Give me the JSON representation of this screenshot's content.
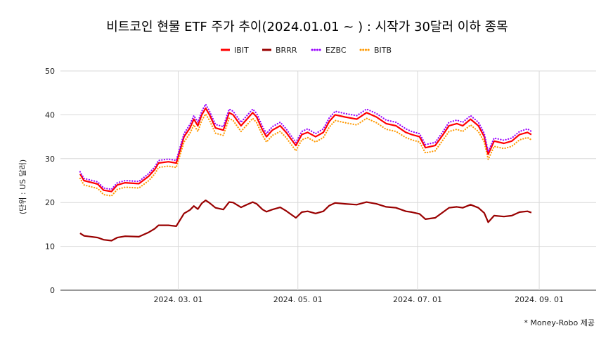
{
  "chart_data": {
    "type": "line",
    "title": "비트코인 현물 ETF 주가 추이(2024.01.01 ~ ) :  시작가 30달러 이하 종목",
    "ylabel": "(단위 : US 달러)",
    "xlabel": "",
    "ylim": [
      0,
      50
    ],
    "yticks": [
      0,
      10,
      20,
      30,
      40,
      50
    ],
    "x_range": [
      "2024-01-01",
      "2024-09-30"
    ],
    "xticks": [
      {
        "date": "2024-03-01",
        "label": "2024. 03. 01"
      },
      {
        "date": "2024-05-01",
        "label": "2024. 05. 01"
      },
      {
        "date": "2024-07-01",
        "label": "2024. 07. 01"
      },
      {
        "date": "2024-09-01",
        "label": "2024. 09. 01"
      }
    ],
    "grid": true,
    "legend_position": "top",
    "series": [
      {
        "name": "IBIT",
        "color": "#ff0000",
        "style": "solid",
        "points": [
          [
            "2024-01-11",
            26.5
          ],
          [
            "2024-01-13",
            25.0
          ],
          [
            "2024-01-20",
            24.2
          ],
          [
            "2024-01-23",
            22.8
          ],
          [
            "2024-01-27",
            22.5
          ],
          [
            "2024-01-30",
            24.0
          ],
          [
            "2024-02-03",
            24.5
          ],
          [
            "2024-02-10",
            24.3
          ],
          [
            "2024-02-15",
            26.0
          ],
          [
            "2024-02-18",
            27.5
          ],
          [
            "2024-02-20",
            29.0
          ],
          [
            "2024-02-25",
            29.3
          ],
          [
            "2024-02-29",
            29.0
          ],
          [
            "2024-03-04",
            35.0
          ],
          [
            "2024-03-07",
            37.0
          ],
          [
            "2024-03-09",
            39.0
          ],
          [
            "2024-03-11",
            37.5
          ],
          [
            "2024-03-13",
            40.0
          ],
          [
            "2024-03-15",
            41.5
          ],
          [
            "2024-03-17",
            40.0
          ],
          [
            "2024-03-20",
            37.0
          ],
          [
            "2024-03-24",
            36.5
          ],
          [
            "2024-03-27",
            40.5
          ],
          [
            "2024-03-29",
            40.0
          ],
          [
            "2024-04-02",
            37.5
          ],
          [
            "2024-04-05",
            39.0
          ],
          [
            "2024-04-08",
            40.5
          ],
          [
            "2024-04-10",
            39.5
          ],
          [
            "2024-04-13",
            36.5
          ],
          [
            "2024-04-15",
            35.0
          ],
          [
            "2024-04-18",
            36.5
          ],
          [
            "2024-04-22",
            37.5
          ],
          [
            "2024-04-25",
            36.0
          ],
          [
            "2024-04-30",
            33.0
          ],
          [
            "2024-05-03",
            35.5
          ],
          [
            "2024-05-06",
            36.0
          ],
          [
            "2024-05-10",
            35.0
          ],
          [
            "2024-05-14",
            36.0
          ],
          [
            "2024-05-17",
            38.5
          ],
          [
            "2024-05-20",
            40.0
          ],
          [
            "2024-05-25",
            39.5
          ],
          [
            "2024-05-31",
            39.0
          ],
          [
            "2024-06-05",
            40.5
          ],
          [
            "2024-06-10",
            39.5
          ],
          [
            "2024-06-15",
            38.0
          ],
          [
            "2024-06-20",
            37.5
          ],
          [
            "2024-06-25",
            36.0
          ],
          [
            "2024-06-28",
            35.5
          ],
          [
            "2024-07-02",
            35.0
          ],
          [
            "2024-07-05",
            32.5
          ],
          [
            "2024-07-10",
            33.0
          ],
          [
            "2024-07-14",
            35.5
          ],
          [
            "2024-07-17",
            37.5
          ],
          [
            "2024-07-21",
            38.0
          ],
          [
            "2024-07-24",
            37.5
          ],
          [
            "2024-07-28",
            39.0
          ],
          [
            "2024-08-01",
            37.5
          ],
          [
            "2024-08-04",
            35.0
          ],
          [
            "2024-08-06",
            31.0
          ],
          [
            "2024-08-09",
            34.0
          ],
          [
            "2024-08-14",
            33.5
          ],
          [
            "2024-08-18",
            34.0
          ],
          [
            "2024-08-22",
            35.5
          ],
          [
            "2024-08-26",
            36.0
          ],
          [
            "2024-08-28",
            35.5
          ]
        ]
      },
      {
        "name": "BRRR",
        "color": "#990000",
        "style": "solid",
        "points": [
          [
            "2024-01-11",
            13.0
          ],
          [
            "2024-01-13",
            12.4
          ],
          [
            "2024-01-20",
            12.0
          ],
          [
            "2024-01-23",
            11.5
          ],
          [
            "2024-01-27",
            11.3
          ],
          [
            "2024-01-30",
            12.0
          ],
          [
            "2024-02-03",
            12.3
          ],
          [
            "2024-02-10",
            12.2
          ],
          [
            "2024-02-15",
            13.2
          ],
          [
            "2024-02-18",
            14.0
          ],
          [
            "2024-02-20",
            14.8
          ],
          [
            "2024-02-25",
            14.8
          ],
          [
            "2024-02-29",
            14.6
          ],
          [
            "2024-03-04",
            17.5
          ],
          [
            "2024-03-07",
            18.3
          ],
          [
            "2024-03-09",
            19.2
          ],
          [
            "2024-03-11",
            18.5
          ],
          [
            "2024-03-13",
            19.8
          ],
          [
            "2024-03-15",
            20.5
          ],
          [
            "2024-03-17",
            19.9
          ],
          [
            "2024-03-20",
            18.8
          ],
          [
            "2024-03-24",
            18.4
          ],
          [
            "2024-03-27",
            20.1
          ],
          [
            "2024-03-29",
            20.0
          ],
          [
            "2024-04-02",
            18.9
          ],
          [
            "2024-04-05",
            19.5
          ],
          [
            "2024-04-08",
            20.1
          ],
          [
            "2024-04-10",
            19.7
          ],
          [
            "2024-04-13",
            18.4
          ],
          [
            "2024-04-15",
            17.9
          ],
          [
            "2024-04-18",
            18.4
          ],
          [
            "2024-04-22",
            18.9
          ],
          [
            "2024-04-25",
            18.1
          ],
          [
            "2024-04-30",
            16.5
          ],
          [
            "2024-05-03",
            17.8
          ],
          [
            "2024-05-06",
            18.0
          ],
          [
            "2024-05-10",
            17.5
          ],
          [
            "2024-05-14",
            18.0
          ],
          [
            "2024-05-17",
            19.3
          ],
          [
            "2024-05-20",
            19.9
          ],
          [
            "2024-05-25",
            19.7
          ],
          [
            "2024-05-31",
            19.5
          ],
          [
            "2024-06-05",
            20.1
          ],
          [
            "2024-06-10",
            19.7
          ],
          [
            "2024-06-15",
            19.0
          ],
          [
            "2024-06-20",
            18.8
          ],
          [
            "2024-06-25",
            18.0
          ],
          [
            "2024-06-28",
            17.8
          ],
          [
            "2024-07-02",
            17.4
          ],
          [
            "2024-07-05",
            16.2
          ],
          [
            "2024-07-10",
            16.5
          ],
          [
            "2024-07-14",
            17.8
          ],
          [
            "2024-07-17",
            18.8
          ],
          [
            "2024-07-21",
            19.0
          ],
          [
            "2024-07-24",
            18.8
          ],
          [
            "2024-07-28",
            19.5
          ],
          [
            "2024-08-01",
            18.8
          ],
          [
            "2024-08-04",
            17.6
          ],
          [
            "2024-08-06",
            15.5
          ],
          [
            "2024-08-09",
            17.0
          ],
          [
            "2024-08-14",
            16.8
          ],
          [
            "2024-08-18",
            17.0
          ],
          [
            "2024-08-22",
            17.8
          ],
          [
            "2024-08-26",
            18.0
          ],
          [
            "2024-08-28",
            17.7
          ]
        ]
      },
      {
        "name": "EZBC",
        "color": "#9900ff",
        "style": "dotted",
        "points": [
          [
            "2024-01-11",
            27.0
          ],
          [
            "2024-01-13",
            25.5
          ],
          [
            "2024-01-20",
            24.7
          ],
          [
            "2024-01-23",
            23.3
          ],
          [
            "2024-01-27",
            23.0
          ],
          [
            "2024-01-30",
            24.5
          ],
          [
            "2024-02-03",
            25.0
          ],
          [
            "2024-02-10",
            24.8
          ],
          [
            "2024-02-15",
            26.6
          ],
          [
            "2024-02-18",
            28.1
          ],
          [
            "2024-02-20",
            29.6
          ],
          [
            "2024-02-25",
            29.9
          ],
          [
            "2024-02-29",
            29.6
          ],
          [
            "2024-03-04",
            35.7
          ],
          [
            "2024-03-07",
            37.8
          ],
          [
            "2024-03-09",
            39.8
          ],
          [
            "2024-03-11",
            38.3
          ],
          [
            "2024-03-13",
            40.8
          ],
          [
            "2024-03-15",
            42.4
          ],
          [
            "2024-03-17",
            40.8
          ],
          [
            "2024-03-20",
            37.8
          ],
          [
            "2024-03-24",
            37.3
          ],
          [
            "2024-03-27",
            41.3
          ],
          [
            "2024-03-29",
            40.8
          ],
          [
            "2024-04-02",
            38.3
          ],
          [
            "2024-04-05",
            39.8
          ],
          [
            "2024-04-08",
            41.3
          ],
          [
            "2024-04-10",
            40.3
          ],
          [
            "2024-04-13",
            37.3
          ],
          [
            "2024-04-15",
            35.7
          ],
          [
            "2024-04-18",
            37.3
          ],
          [
            "2024-04-22",
            38.3
          ],
          [
            "2024-04-25",
            36.8
          ],
          [
            "2024-04-30",
            33.7
          ],
          [
            "2024-05-03",
            36.2
          ],
          [
            "2024-05-06",
            36.8
          ],
          [
            "2024-05-10",
            35.7
          ],
          [
            "2024-05-14",
            36.8
          ],
          [
            "2024-05-17",
            39.3
          ],
          [
            "2024-05-20",
            40.8
          ],
          [
            "2024-05-25",
            40.3
          ],
          [
            "2024-05-31",
            39.8
          ],
          [
            "2024-06-05",
            41.3
          ],
          [
            "2024-06-10",
            40.3
          ],
          [
            "2024-06-15",
            38.8
          ],
          [
            "2024-06-20",
            38.3
          ],
          [
            "2024-06-25",
            36.8
          ],
          [
            "2024-06-28",
            36.2
          ],
          [
            "2024-07-02",
            35.7
          ],
          [
            "2024-07-05",
            33.2
          ],
          [
            "2024-07-10",
            33.7
          ],
          [
            "2024-07-14",
            36.2
          ],
          [
            "2024-07-17",
            38.3
          ],
          [
            "2024-07-21",
            38.8
          ],
          [
            "2024-07-24",
            38.3
          ],
          [
            "2024-07-28",
            39.8
          ],
          [
            "2024-08-01",
            38.3
          ],
          [
            "2024-08-04",
            35.7
          ],
          [
            "2024-08-06",
            31.6
          ],
          [
            "2024-08-09",
            34.7
          ],
          [
            "2024-08-14",
            34.2
          ],
          [
            "2024-08-18",
            34.7
          ],
          [
            "2024-08-22",
            36.2
          ],
          [
            "2024-08-26",
            36.8
          ],
          [
            "2024-08-28",
            36.2
          ]
        ]
      },
      {
        "name": "BITB",
        "color": "#ff9900",
        "style": "dotted",
        "points": [
          [
            "2024-01-11",
            25.5
          ],
          [
            "2024-01-13",
            24.0
          ],
          [
            "2024-01-20",
            23.2
          ],
          [
            "2024-01-23",
            21.8
          ],
          [
            "2024-01-27",
            21.5
          ],
          [
            "2024-01-30",
            23.0
          ],
          [
            "2024-02-03",
            23.5
          ],
          [
            "2024-02-10",
            23.3
          ],
          [
            "2024-02-15",
            25.0
          ],
          [
            "2024-02-18",
            26.5
          ],
          [
            "2024-02-20",
            28.0
          ],
          [
            "2024-02-25",
            28.3
          ],
          [
            "2024-02-29",
            28.0
          ],
          [
            "2024-03-04",
            33.8
          ],
          [
            "2024-03-07",
            35.8
          ],
          [
            "2024-03-09",
            37.7
          ],
          [
            "2024-03-11",
            36.2
          ],
          [
            "2024-03-13",
            38.7
          ],
          [
            "2024-03-15",
            40.2
          ],
          [
            "2024-03-17",
            38.7
          ],
          [
            "2024-03-20",
            35.8
          ],
          [
            "2024-03-24",
            35.3
          ],
          [
            "2024-03-27",
            39.2
          ],
          [
            "2024-03-29",
            38.7
          ],
          [
            "2024-04-02",
            36.2
          ],
          [
            "2024-04-05",
            37.7
          ],
          [
            "2024-04-08",
            39.2
          ],
          [
            "2024-04-10",
            38.2
          ],
          [
            "2024-04-13",
            35.3
          ],
          [
            "2024-04-15",
            33.8
          ],
          [
            "2024-04-18",
            35.3
          ],
          [
            "2024-04-22",
            36.2
          ],
          [
            "2024-04-25",
            34.8
          ],
          [
            "2024-04-30",
            31.8
          ],
          [
            "2024-05-03",
            34.3
          ],
          [
            "2024-05-06",
            34.8
          ],
          [
            "2024-05-10",
            33.8
          ],
          [
            "2024-05-14",
            34.8
          ],
          [
            "2024-05-17",
            37.2
          ],
          [
            "2024-05-20",
            38.7
          ],
          [
            "2024-05-25",
            38.2
          ],
          [
            "2024-05-31",
            37.7
          ],
          [
            "2024-06-05",
            39.2
          ],
          [
            "2024-06-10",
            38.2
          ],
          [
            "2024-06-15",
            36.7
          ],
          [
            "2024-06-20",
            36.2
          ],
          [
            "2024-06-25",
            34.8
          ],
          [
            "2024-06-28",
            34.3
          ],
          [
            "2024-07-02",
            33.8
          ],
          [
            "2024-07-05",
            31.3
          ],
          [
            "2024-07-10",
            31.8
          ],
          [
            "2024-07-14",
            34.3
          ],
          [
            "2024-07-17",
            36.2
          ],
          [
            "2024-07-21",
            36.7
          ],
          [
            "2024-07-24",
            36.2
          ],
          [
            "2024-07-28",
            37.7
          ],
          [
            "2024-08-01",
            36.2
          ],
          [
            "2024-08-04",
            33.8
          ],
          [
            "2024-08-06",
            29.8
          ],
          [
            "2024-08-09",
            32.8
          ],
          [
            "2024-08-14",
            32.3
          ],
          [
            "2024-08-18",
            32.8
          ],
          [
            "2024-08-22",
            34.3
          ],
          [
            "2024-08-26",
            34.8
          ],
          [
            "2024-08-28",
            34.3
          ]
        ]
      }
    ],
    "source_note": "* Money-Robo 제공"
  }
}
